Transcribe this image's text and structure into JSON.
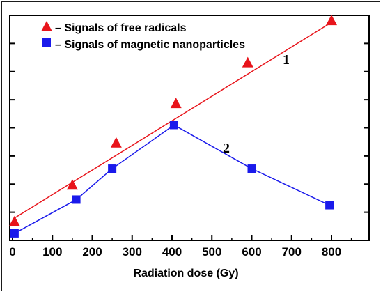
{
  "chart_data": {
    "type": "line",
    "xlabel": "Radiation dose (Gy)",
    "ylabel": "",
    "xlim": [
      0,
      900
    ],
    "ylim": [
      0,
      8
    ],
    "x_ticks": [
      "0",
      "100",
      "200",
      "300",
      "400",
      "500",
      "600",
      "700",
      "800"
    ],
    "y_tick_count": 8,
    "y_tick_labels_shown": false,
    "grid": false,
    "legend_position": "top-left",
    "series": [
      {
        "name": "– Signals of free radicals",
        "marker": "triangle",
        "color": "#e8141b",
        "points": [
          {
            "x": 5,
            "y": 0.65
          },
          {
            "x": 150,
            "y": 1.95
          },
          {
            "x": 260,
            "y": 3.45
          },
          {
            "x": 410,
            "y": 4.85
          },
          {
            "x": 590,
            "y": 6.3
          },
          {
            "x": 800,
            "y": 7.8
          }
        ],
        "trendline": {
          "x0": 0,
          "y0": 0.75,
          "x1": 800,
          "y1": 7.75
        },
        "curve_label": "1"
      },
      {
        "name": "– Signals of magnetic nanoparticles",
        "marker": "square",
        "color": "#1a1aeb",
        "points": [
          {
            "x": 5,
            "y": 0.25
          },
          {
            "x": 160,
            "y": 1.45
          },
          {
            "x": 250,
            "y": 2.55
          },
          {
            "x": 405,
            "y": 4.1
          },
          {
            "x": 600,
            "y": 2.55
          },
          {
            "x": 795,
            "y": 1.25
          }
        ],
        "curve_label": "2"
      }
    ]
  }
}
